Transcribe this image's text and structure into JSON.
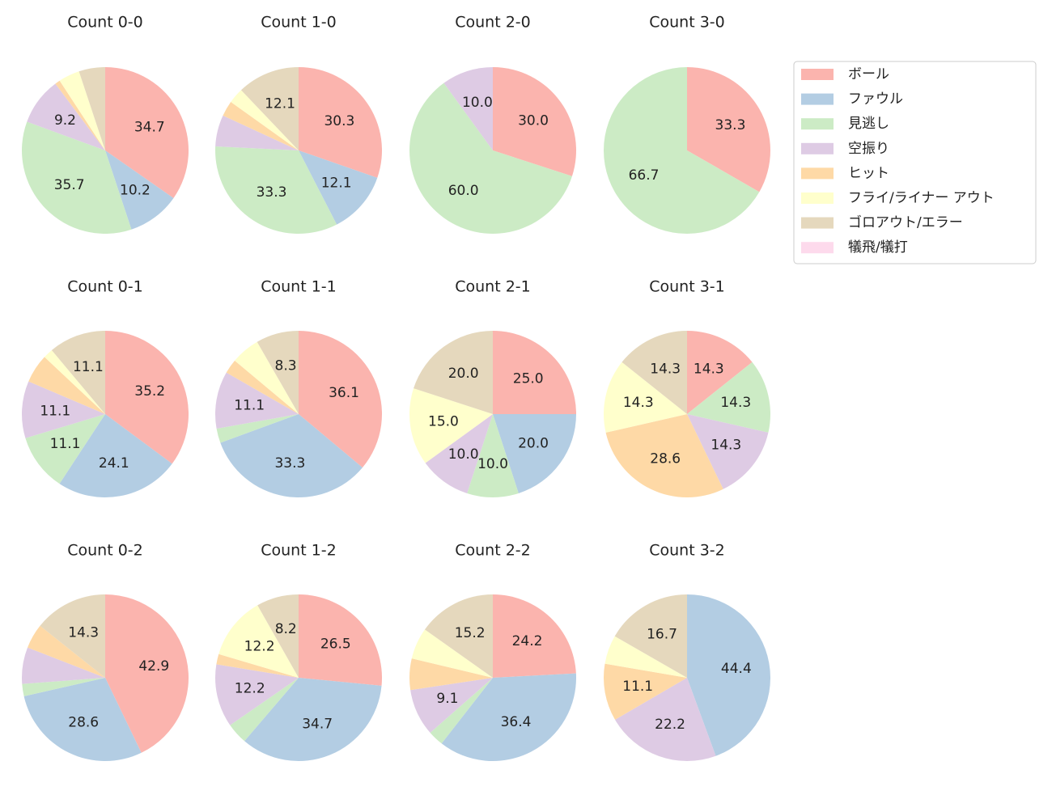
{
  "chart_data": {
    "type": "pie",
    "categories": [
      "ボール",
      "ファウル",
      "見逃し",
      "空振り",
      "ヒット",
      "フライ/ライナー アウト",
      "ゴロアウト/エラー",
      "犠飛/犠打"
    ],
    "colors": [
      "#fbb4ae",
      "#b3cde3",
      "#ccebc5",
      "#decbe4",
      "#fed9a6",
      "#ffffcc",
      "#e5d8bd",
      "#fddaec"
    ],
    "legend": "upper right",
    "series": [
      {
        "name": "Count 0-0",
        "values": [
          34.7,
          10.2,
          35.7,
          9.2,
          1.0,
          4.1,
          5.1,
          0
        ],
        "value_labels": [
          "34.7",
          "10.2",
          "35.7",
          "9.2",
          null,
          null,
          null,
          null
        ]
      },
      {
        "name": "Count 1-0",
        "values": [
          30.3,
          12.1,
          33.3,
          6.1,
          3.0,
          3.0,
          12.1,
          0
        ],
        "value_labels": [
          "30.3",
          "12.1",
          "33.3",
          null,
          null,
          null,
          "12.1",
          null
        ]
      },
      {
        "name": "Count 2-0",
        "values": [
          30.0,
          0,
          60.0,
          10.0,
          0,
          0,
          0,
          0
        ],
        "value_labels": [
          "30.0",
          null,
          "60.0",
          "10.0",
          null,
          null,
          null,
          null
        ]
      },
      {
        "name": "Count 3-0",
        "values": [
          33.3,
          0,
          66.7,
          0,
          0,
          0,
          0,
          0
        ],
        "value_labels": [
          "33.3",
          null,
          "66.7",
          null,
          null,
          null,
          null,
          null
        ]
      },
      {
        "name": "Count 0-1",
        "values": [
          35.2,
          24.1,
          11.1,
          11.1,
          5.6,
          1.9,
          11.1,
          0
        ],
        "value_labels": [
          "35.2",
          "24.1",
          "11.1",
          "11.1",
          null,
          null,
          "11.1",
          null
        ]
      },
      {
        "name": "Count 1-1",
        "values": [
          36.1,
          33.3,
          2.8,
          11.1,
          2.8,
          5.6,
          8.3,
          0
        ],
        "value_labels": [
          "36.1",
          "33.3",
          null,
          "11.1",
          null,
          null,
          "8.3",
          null
        ]
      },
      {
        "name": "Count 2-1",
        "values": [
          25.0,
          20.0,
          10.0,
          10.0,
          0,
          15.0,
          20.0,
          0
        ],
        "value_labels": [
          "25.0",
          "20.0",
          "10.0",
          "10.0",
          null,
          "15.0",
          "20.0",
          null
        ]
      },
      {
        "name": "Count 3-1",
        "values": [
          14.3,
          0,
          14.3,
          14.3,
          28.6,
          14.3,
          14.3,
          0
        ],
        "value_labels": [
          "14.3",
          null,
          "14.3",
          "14.3",
          "28.6",
          "14.3",
          "14.3",
          null
        ]
      },
      {
        "name": "Count 0-2",
        "values": [
          42.9,
          28.6,
          2.4,
          7.1,
          4.8,
          0,
          14.3,
          0
        ],
        "value_labels": [
          "42.9",
          "28.6",
          null,
          null,
          null,
          null,
          "14.3",
          null
        ]
      },
      {
        "name": "Count 1-2",
        "values": [
          26.5,
          34.7,
          4.1,
          12.2,
          2.0,
          12.2,
          8.2,
          0
        ],
        "value_labels": [
          "26.5",
          "34.7",
          null,
          "12.2",
          null,
          "12.2",
          "8.2",
          null
        ]
      },
      {
        "name": "Count 2-2",
        "values": [
          24.2,
          36.4,
          3.0,
          9.1,
          6.1,
          6.1,
          15.2,
          0
        ],
        "value_labels": [
          "24.2",
          "36.4",
          null,
          "9.1",
          null,
          null,
          "15.2",
          null
        ]
      },
      {
        "name": "Count 3-2",
        "values": [
          0,
          44.4,
          0,
          22.2,
          11.1,
          5.6,
          16.7,
          0
        ],
        "value_labels": [
          null,
          "44.4",
          null,
          "22.2",
          "11.1",
          null,
          "16.7",
          null
        ]
      }
    ]
  }
}
